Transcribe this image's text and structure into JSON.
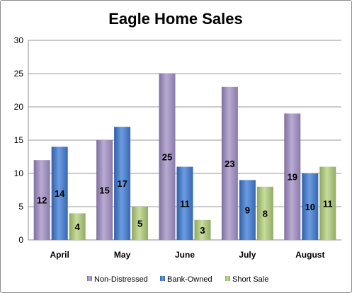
{
  "chart_data": {
    "type": "bar",
    "title": "Eagle Home Sales",
    "categories": [
      "April",
      "May",
      "June",
      "July",
      "August"
    ],
    "series": [
      {
        "name": "Non-Distressed",
        "values": [
          12,
          15,
          25,
          23,
          19
        ],
        "color": "#9b8cb5"
      },
      {
        "name": "Bank-Owned",
        "values": [
          14,
          17,
          11,
          9,
          10
        ],
        "color": "#4a7cc4"
      },
      {
        "name": "Short Sale",
        "values": [
          4,
          5,
          3,
          8,
          11
        ],
        "color": "#a8c07a"
      }
    ],
    "ylim": [
      0,
      30
    ],
    "yticks": [
      0,
      5,
      10,
      15,
      20,
      25,
      30
    ],
    "xlabel": "",
    "ylabel": "",
    "grid": true,
    "legend_position": "bottom",
    "data_labels": true
  }
}
